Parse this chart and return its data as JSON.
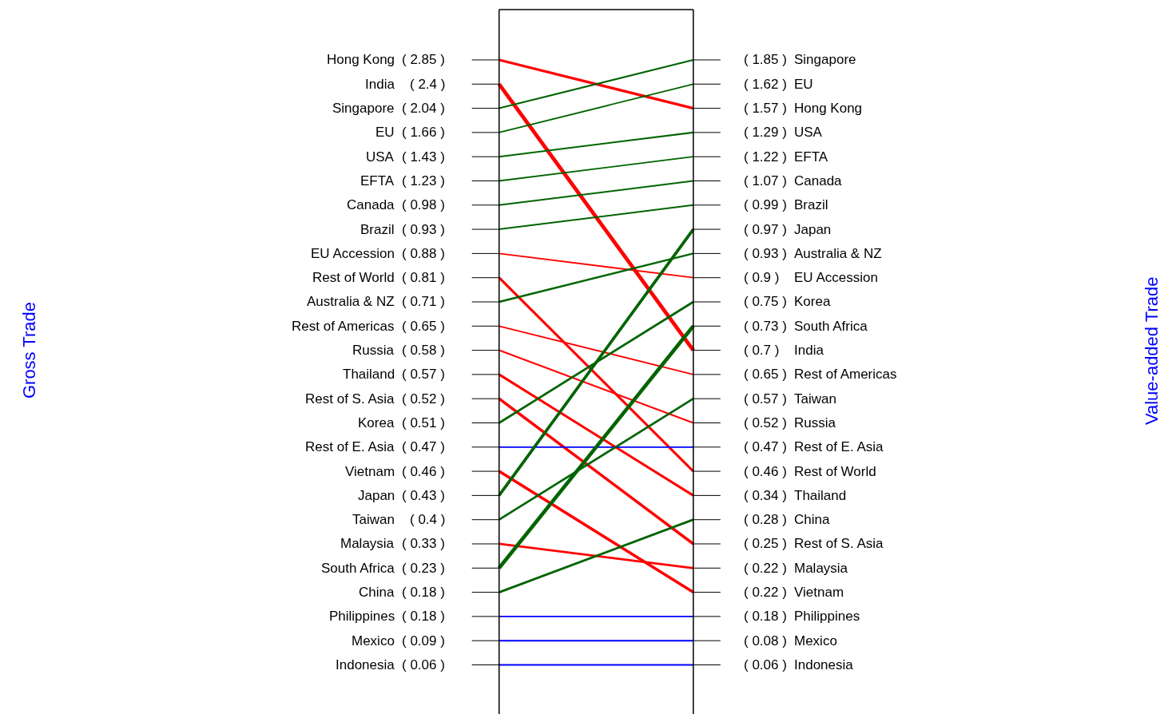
{
  "chart_data": {
    "type": "other",
    "ylabel": "Gross Trade",
    "y2label": "Value-added Trade",
    "categories": [
      "Hong Kong",
      "India",
      "Singapore",
      "EU",
      "USA",
      "EFTA",
      "Canada",
      "Brazil",
      "EU Accession",
      "Rest of World",
      "Australia & NZ",
      "Rest of Americas",
      "Russia",
      "Thailand",
      "Rest of S. Asia",
      "Korea",
      "Rest of E. Asia",
      "Vietnam",
      "Japan",
      "Taiwan",
      "Malaysia",
      "South Africa",
      "China",
      "Philippines",
      "Mexico",
      "Indonesia"
    ],
    "y2_categories": [
      "Singapore",
      "EU",
      "Hong Kong",
      "USA",
      "EFTA",
      "Canada",
      "Brazil",
      "Japan",
      "Australia & NZ",
      "EU Accession",
      "Korea",
      "South Africa",
      "India",
      "Rest of Americas",
      "Taiwan",
      "Russia",
      "Rest of E. Asia",
      "Rest of World",
      "Thailand",
      "China",
      "Rest of S. Asia",
      "Malaysia",
      "Vietnam",
      "Philippines",
      "Mexico",
      "Indonesia"
    ],
    "series": [
      {
        "values": [
          2.85,
          2.4,
          2.04,
          1.66,
          1.43,
          1.23,
          0.98,
          0.93,
          0.88,
          0.81,
          0.71,
          0.65,
          0.58,
          0.57,
          0.52,
          0.51,
          0.47,
          0.46,
          0.43,
          0.4,
          0.33,
          0.23,
          0.18,
          0.18,
          0.09,
          0.06
        ],
        "value_labels": [
          "( 2.85 )",
          "( 2.4 )",
          "( 2.04 )",
          "( 1.66 )",
          "( 1.43 )",
          "( 1.23 )",
          "( 0.98 )",
          "( 0.93 )",
          "( 0.88 )",
          "( 0.81 )",
          "( 0.71 )",
          "( 0.65 )",
          "( 0.58 )",
          "( 0.57 )",
          "( 0.52 )",
          "( 0.51 )",
          "( 0.47 )",
          "( 0.46 )",
          "( 0.43 )",
          "( 0.4 )",
          "( 0.33 )",
          "( 0.23 )",
          "( 0.18 )",
          "( 0.18 )",
          "( 0.09 )",
          "( 0.06 )"
        ],
        "colors": [
          "#ff0000",
          "#ff0000",
          "#006400",
          "#006400",
          "#006400",
          "#006400",
          "#006400",
          "#006400",
          "#ff0000",
          "#ff0000",
          "#006400",
          "#ff0000",
          "#ff0000",
          "#ff0000",
          "#ff0000",
          "#006400",
          "#0000ff",
          "#ff0000",
          "#006400",
          "#006400",
          "#ff0000",
          "#006400",
          "#006400",
          "#0000ff",
          "#0000ff",
          "#0000ff"
        ]
      },
      {
        "axis": "y2",
        "values": [
          1.85,
          1.62,
          1.57,
          1.29,
          1.22,
          1.07,
          0.99,
          0.97,
          0.93,
          0.9,
          0.75,
          0.73,
          0.7,
          0.65,
          0.57,
          0.52,
          0.47,
          0.46,
          0.34,
          0.28,
          0.25,
          0.22,
          0.22,
          0.18,
          0.08,
          0.06
        ],
        "value_labels": [
          "( 1.85 )",
          "( 1.62 )",
          "( 1.57 )",
          "( 1.29 )",
          "( 1.22 )",
          "( 1.07 )",
          "( 0.99 )",
          "( 0.97 )",
          "( 0.93 )",
          "( 0.9 )",
          "( 0.75 )",
          "( 0.73 )",
          "( 0.7 )",
          "( 0.65 )",
          "( 0.57 )",
          "( 0.52 )",
          "( 0.47 )",
          "( 0.46 )",
          "( 0.34 )",
          "( 0.28 )",
          "( 0.25 )",
          "( 0.22 )",
          "( 0.22 )",
          "( 0.18 )",
          "( 0.08 )",
          "( 0.06 )"
        ]
      }
    ]
  }
}
